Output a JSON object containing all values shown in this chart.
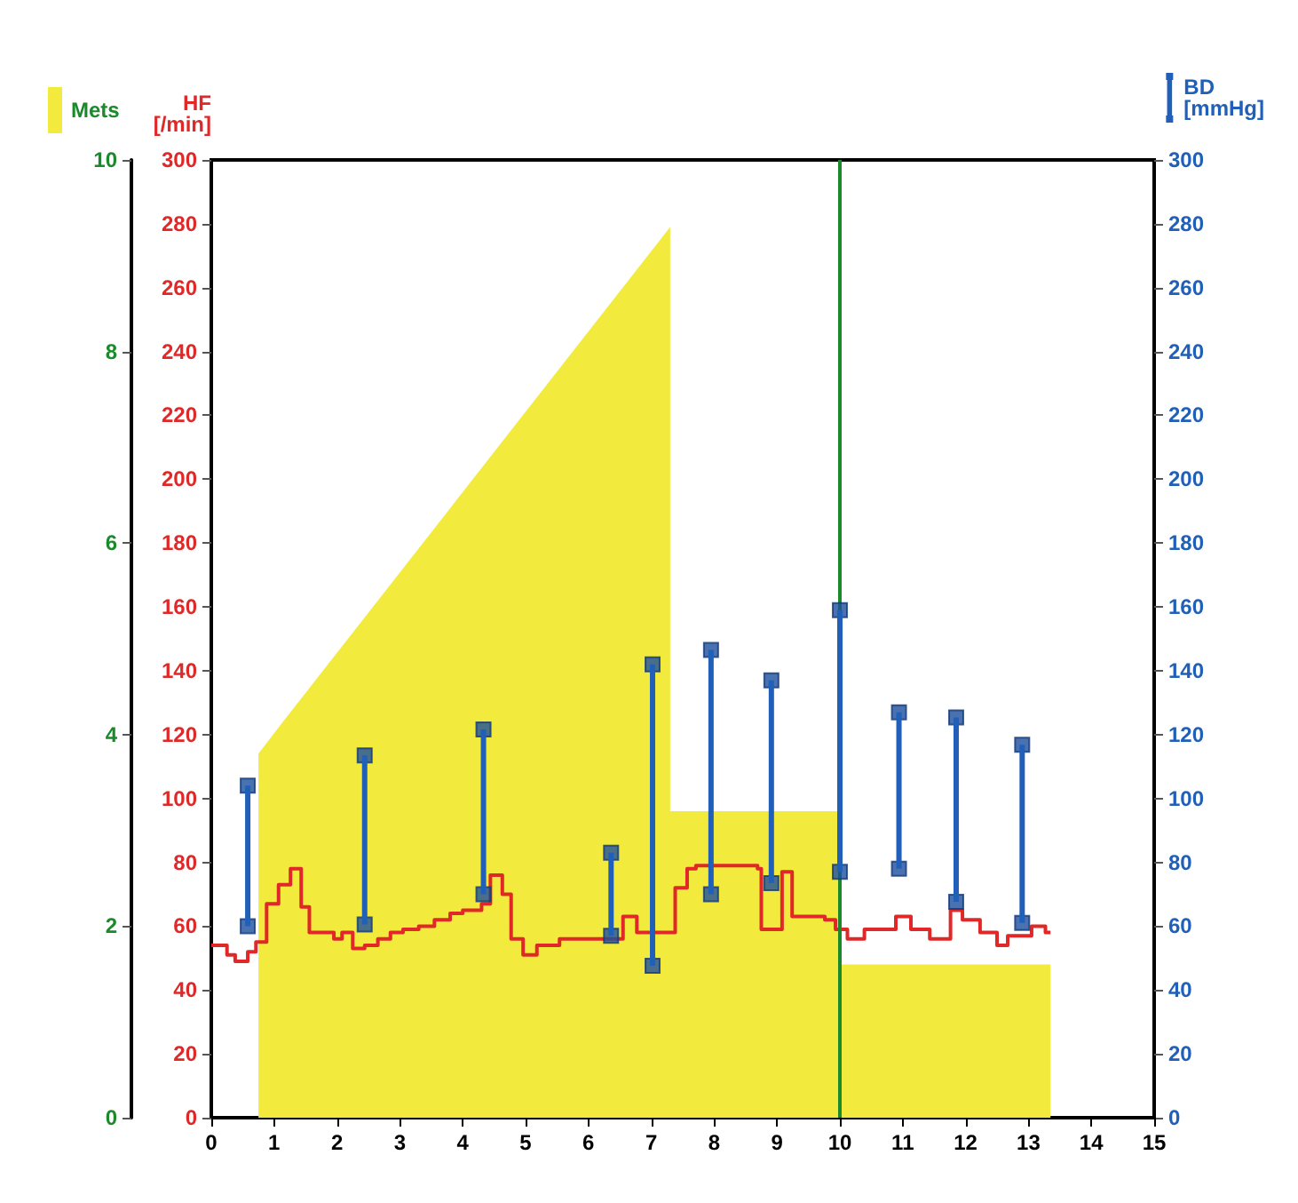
{
  "chart_data": {
    "type": "step",
    "ylabel": "HF [/min]",
    "xlim": [
      0,
      15
    ],
    "xticks": [
      0,
      1,
      2,
      3,
      4,
      5,
      6,
      7,
      8,
      9,
      10,
      11,
      12,
      13,
      14,
      15
    ],
    "ylim": [
      0,
      300
    ],
    "yticks": [
      0,
      20,
      40,
      60,
      80,
      100,
      120,
      140,
      160,
      180,
      200,
      220,
      240,
      260,
      280,
      300
    ],
    "y2lim": [
      0,
      300
    ],
    "y2ticks": [
      0,
      20,
      40,
      60,
      80,
      100,
      120,
      140,
      160,
      180,
      200,
      220,
      240,
      260,
      280,
      300
    ],
    "y3lim": [
      0,
      10
    ],
    "y3ticks": [
      0,
      2,
      4,
      6,
      8,
      10
    ],
    "grid": false,
    "legend": "top",
    "series": [
      {
        "type": "area",
        "name": "Mets",
        "axis": "y3",
        "color": "#f2ea3c",
        "x": [
          0.75,
          0.75,
          1.1,
          7.3,
          7.3,
          10,
          10,
          13.35,
          13.35
        ],
        "values": [
          0,
          3.8,
          4.1,
          9.3,
          3.2,
          3.2,
          1.6,
          1.6,
          0
        ]
      },
      {
        "color": "#e02828",
        "x": [
          0,
          0.25,
          0.38,
          0.58,
          0.71,
          0.88,
          1.07,
          1.26,
          1.43,
          1.56,
          1.95,
          2.08,
          2.25,
          2.44,
          2.65,
          2.85,
          3.05,
          3.3,
          3.55,
          3.8,
          4.0,
          4.3,
          4.44,
          4.63,
          4.77,
          4.96,
          5.18,
          5.54,
          6.28,
          6.55,
          6.77,
          7.38,
          7.57,
          7.71,
          8.69,
          8.75,
          9.08,
          9.24,
          9.76,
          9.93,
          10.12,
          10.39,
          10.89,
          11.13,
          11.43,
          11.76,
          11.95,
          12.23,
          12.5,
          12.67,
          13.05,
          13.27,
          13.35
        ],
        "values": [
          54,
          51,
          49,
          52,
          55,
          67,
          73,
          78,
          66,
          58,
          56,
          58,
          53,
          54,
          56,
          58,
          59,
          60,
          62,
          64,
          65,
          67,
          76,
          70,
          56,
          51,
          54,
          56,
          56,
          63,
          58,
          72,
          78,
          79,
          78,
          59,
          77,
          63,
          62,
          59,
          56,
          59,
          63,
          59,
          56,
          65,
          62,
          58,
          54,
          57,
          60,
          58,
          58
        ]
      },
      {
        "type": "bar",
        "name": "BD [mmHg]",
        "axis": "y2",
        "color": "#2060b8",
        "x": [
          0.58,
          2.44,
          4.33,
          6.36,
          7.02,
          7.95,
          8.91,
          10.0,
          10.94,
          11.85,
          12.9
        ],
        "base": [
          60,
          60.5,
          70,
          57,
          47.6,
          70,
          73.5,
          77,
          78,
          67.6,
          61
        ],
        "values": [
          44,
          53,
          51.6,
          26,
          94.4,
          76.5,
          63.5,
          82,
          49,
          57.8,
          55.8
        ]
      },
      {
        "type": "scatter",
        "axis": "y2",
        "color": "#1d4f9c",
        "marker": "square",
        "x": [
          0.58,
          2.44,
          4.33,
          6.36,
          7.02,
          7.95,
          8.91,
          10.0,
          10.94,
          11.85,
          12.9
        ],
        "values": [
          104,
          113.5,
          121.6,
          83,
          142,
          146.5,
          137,
          159,
          127,
          125.4,
          116.8
        ]
      },
      {
        "type": "scatter",
        "axis": "y2",
        "color": "#1d4f9c",
        "marker": "square",
        "x": [
          0.58,
          2.44,
          4.33,
          6.36,
          7.02,
          7.95,
          8.91,
          10.0,
          10.94,
          11.85,
          12.9
        ],
        "values": [
          60,
          60.5,
          70,
          57,
          47.6,
          70,
          73.5,
          77,
          78,
          67.6,
          61
        ]
      }
    ],
    "ref_lines": [
      {
        "axis": "x",
        "value": 10,
        "color": "#1a8a2a"
      }
    ]
  }
}
